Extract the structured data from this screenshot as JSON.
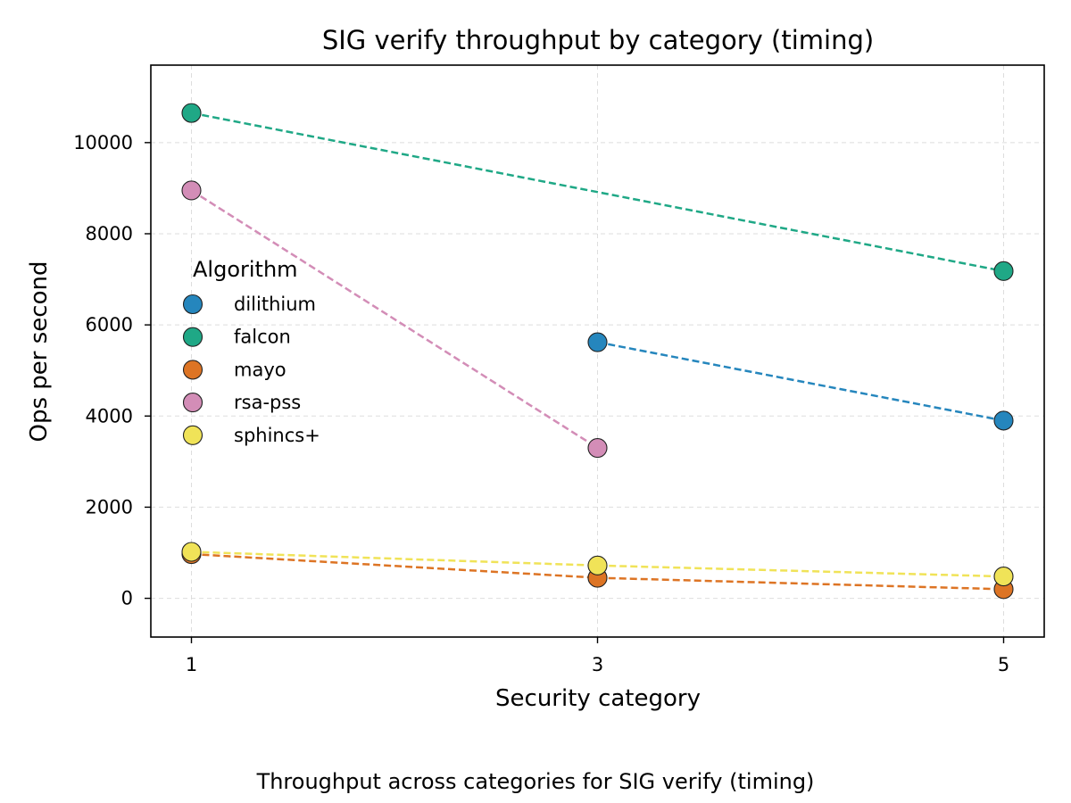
{
  "chart_data": {
    "type": "scatter",
    "title": "SIG verify throughput by category (timing)",
    "xlabel": "Security category",
    "ylabel": "Ops per second",
    "caption": "Throughput across categories for SIG verify (timing)",
    "x_ticks": [
      1,
      3,
      5
    ],
    "y_ticks": [
      0,
      2000,
      4000,
      6000,
      8000,
      10000
    ],
    "xlim": [
      0.8,
      5.2
    ],
    "ylim": [
      -850,
      11700
    ],
    "grid": true,
    "legend": {
      "title": "Algorithm",
      "placement": "center-left"
    },
    "line_style": "dashed",
    "series": [
      {
        "name": "dilithium",
        "color": "#2586bd",
        "points": [
          [
            3,
            5620
          ],
          [
            5,
            3900
          ]
        ]
      },
      {
        "name": "falcon",
        "color": "#1fa886",
        "points": [
          [
            1,
            10650
          ],
          [
            5,
            7180
          ]
        ]
      },
      {
        "name": "mayo",
        "color": "#dd7424",
        "points": [
          [
            1,
            970
          ],
          [
            3,
            450
          ],
          [
            5,
            200
          ]
        ]
      },
      {
        "name": "rsa-pss",
        "color": "#d38db7",
        "points": [
          [
            1,
            8950
          ],
          [
            3,
            3300
          ]
        ]
      },
      {
        "name": "sphincs+",
        "color": "#f0e358",
        "points": [
          [
            1,
            1020
          ],
          [
            3,
            720
          ],
          [
            5,
            480
          ]
        ]
      }
    ]
  }
}
